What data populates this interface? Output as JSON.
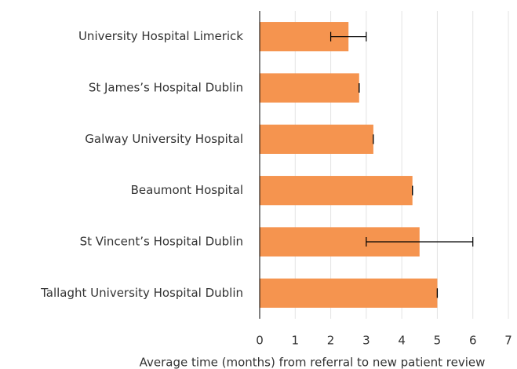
{
  "chart_data": {
    "type": "bar",
    "orientation": "horizontal",
    "x_label": "Average time (months) from referral to new patient review",
    "categories": [
      "University Hospital Limerick",
      "St James’s Hospital Dublin",
      "Galway University Hospital",
      "Beaumont Hospital",
      "St Vincent’s Hospital Dublin",
      "Tallaght University Hospital Dublin"
    ],
    "values": [
      2.5,
      2.8,
      3.2,
      4.3,
      4.5,
      5.0
    ],
    "errors": [
      0.5,
      0,
      0,
      0,
      1.5,
      0
    ],
    "color": "#f5944f",
    "xlim": [
      0,
      7
    ],
    "xticks": [
      0,
      1,
      2,
      3,
      4,
      5,
      6,
      7
    ],
    "grid": true
  }
}
